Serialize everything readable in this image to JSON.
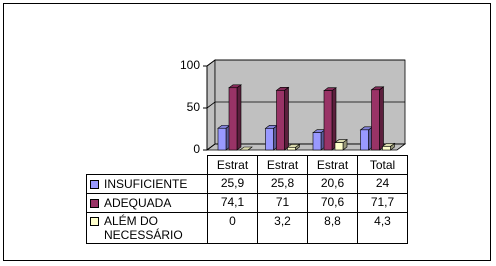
{
  "chart_data": {
    "type": "bar",
    "categories": [
      "Estrat",
      "Estrat",
      "Estrat",
      "Total"
    ],
    "series": [
      {
        "name": "INSUFICIENTE",
        "color": "#9999ff",
        "values": [
          25.9,
          25.8,
          20.6,
          24
        ],
        "value_labels": [
          "25,9",
          "25,8",
          "20,6",
          "24"
        ]
      },
      {
        "name": "ADEQUADA",
        "color": "#993366",
        "values": [
          74.1,
          71,
          70.6,
          71.7
        ],
        "value_labels": [
          "74,1",
          "71",
          "70,6",
          "71,7"
        ]
      },
      {
        "name": "ALÉM DO NECESSÁRIO",
        "color": "#ffffcc",
        "values": [
          0,
          3.2,
          8.8,
          4.3
        ],
        "value_labels": [
          "0",
          "3,2",
          "8,8",
          "4,3"
        ]
      }
    ],
    "ylim": [
      0,
      100
    ],
    "yticks": [
      0,
      50,
      100
    ],
    "grid": true
  }
}
